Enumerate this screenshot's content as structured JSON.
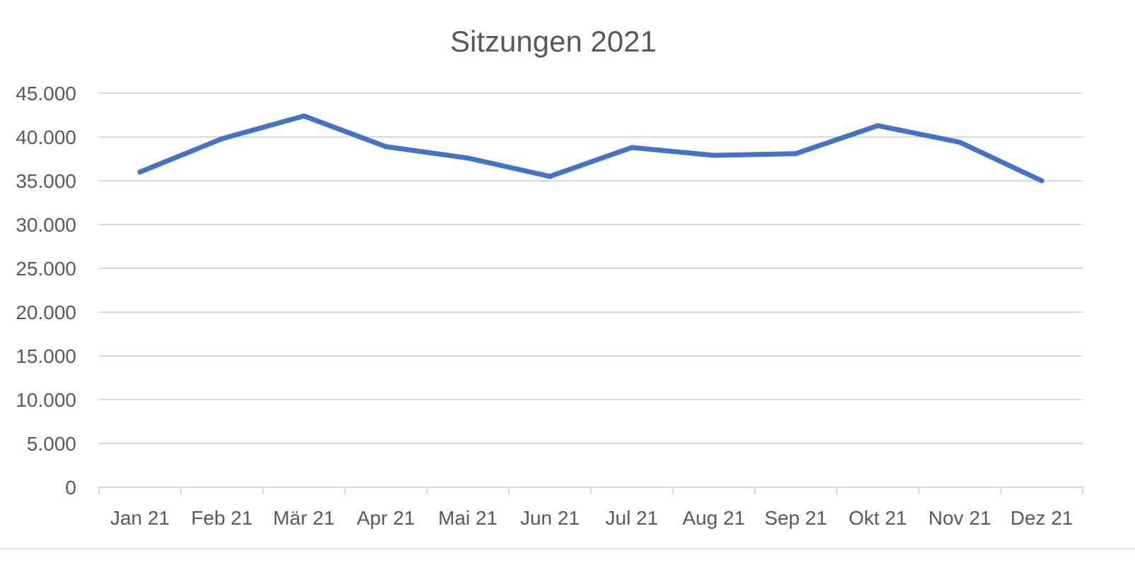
{
  "chart_data": {
    "type": "line",
    "title": "Sitzungen 2021",
    "xlabel": "",
    "ylabel": "",
    "categories": [
      "Jan 21",
      "Feb 21",
      "Mär 21",
      "Apr 21",
      "Mai 21",
      "Jun 21",
      "Jul 21",
      "Aug 21",
      "Sep 21",
      "Okt 21",
      "Nov 21",
      "Dez 21"
    ],
    "series": [
      {
        "values": [
          36000,
          39800,
          42400,
          38900,
          37600,
          35500,
          38800,
          37900,
          38100,
          41300,
          39400,
          35000
        ]
      }
    ],
    "ylim": [
      0,
      45000
    ],
    "yticks": [
      0,
      5000,
      10000,
      15000,
      20000,
      25000,
      30000,
      35000,
      40000,
      45000
    ],
    "ytick_labels": [
      "0",
      "5.000",
      "10.000",
      "15.000",
      "20.000",
      "25.000",
      "30.000",
      "35.000",
      "40.000",
      "45.000"
    ],
    "grid": true,
    "legend": "none",
    "colors": {
      "line": "#4472c4",
      "grid": "#d9d9d9",
      "text": "#595959"
    }
  }
}
